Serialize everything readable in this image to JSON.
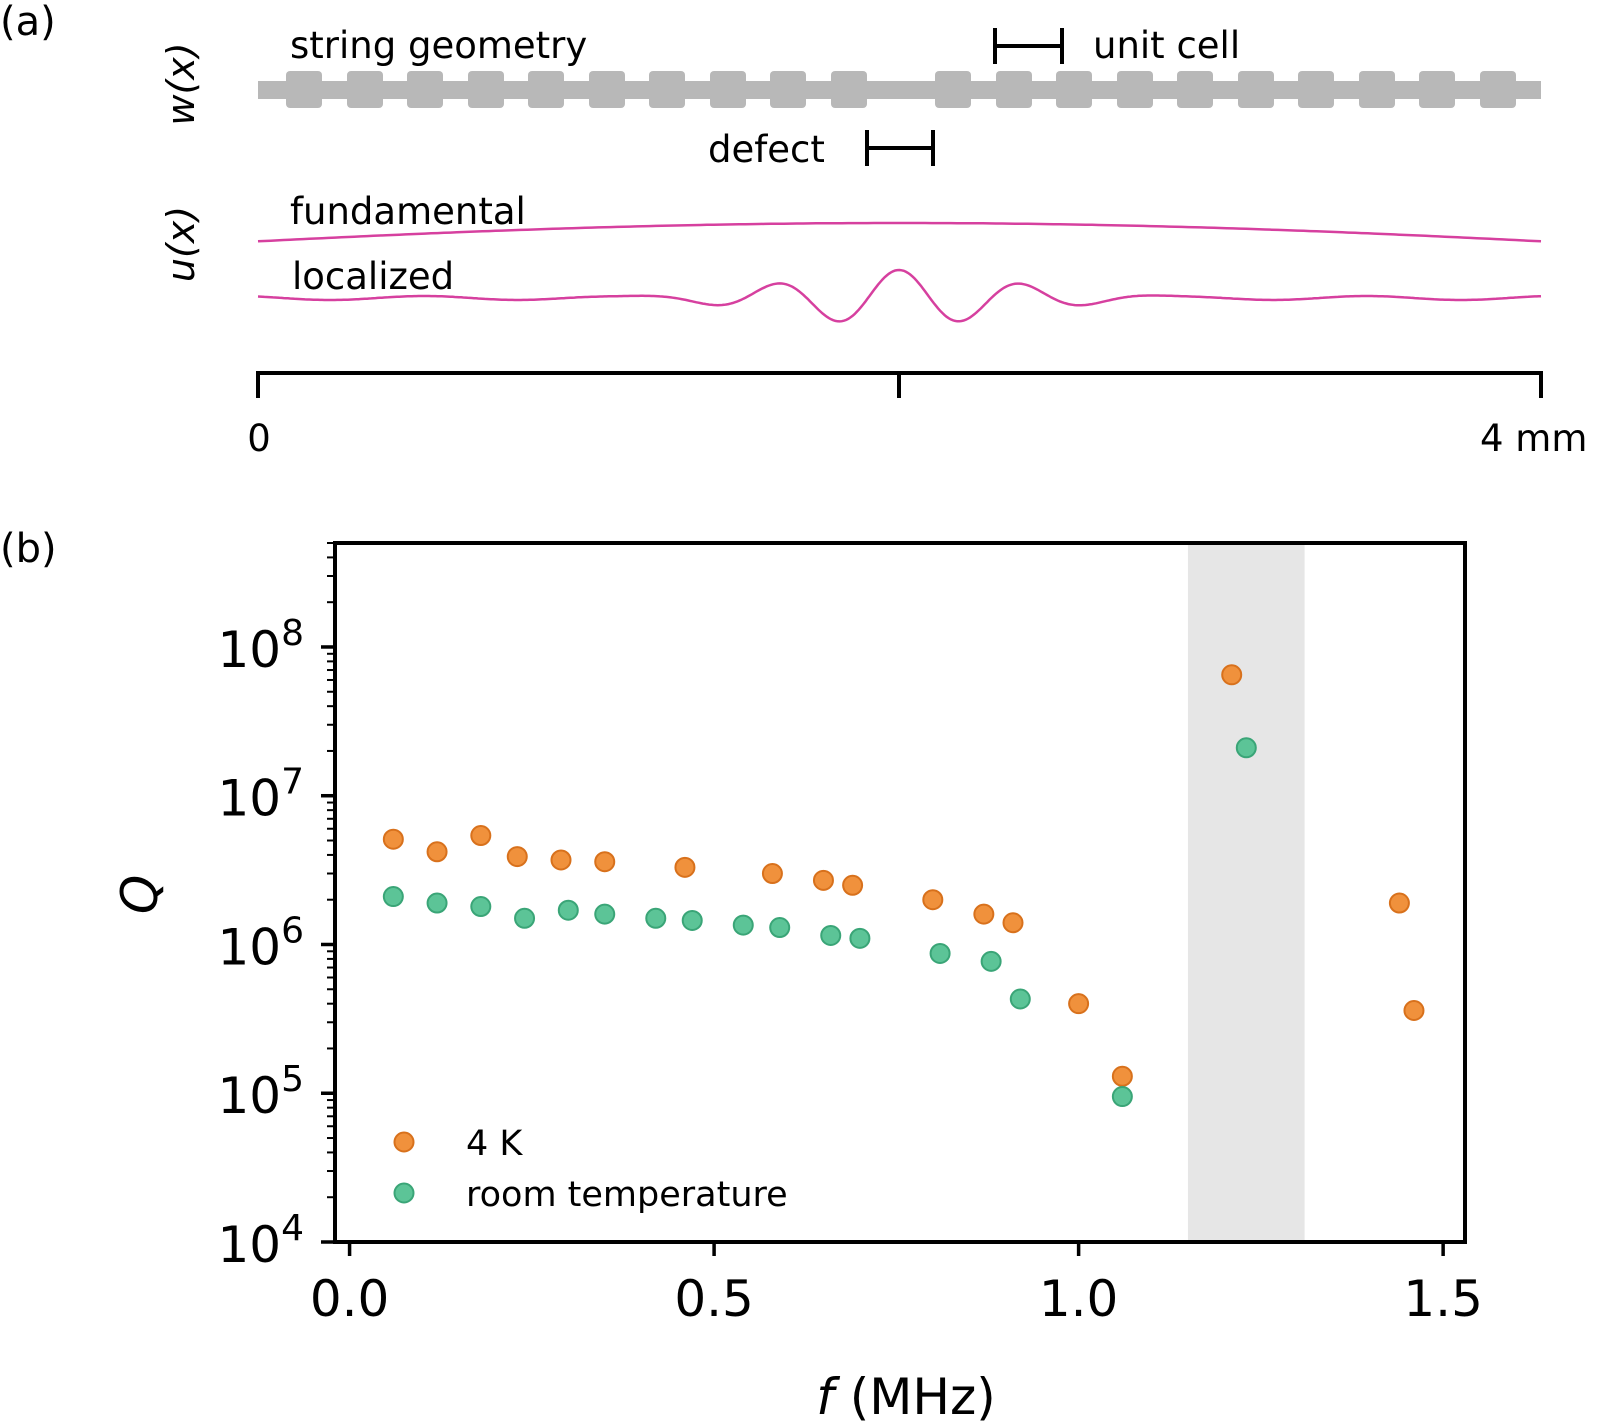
{
  "panel_a": {
    "label": "(a)",
    "w_label": "w(x)",
    "u_label": "u(x)",
    "geometry_label": "string geometry",
    "unit_cell_label": "unit cell",
    "defect_label": "defect",
    "fundamental_label": "fundamental",
    "localized_label": "localized",
    "axis_start_label": "0",
    "axis_end_label": "4 mm",
    "colors": {
      "string": "#b8b8b8",
      "mode": "#d6409f",
      "bar": "#000000"
    }
  },
  "panel_b": {
    "label": "(b)"
  },
  "chart_data": {
    "type": "scatter",
    "xlabel_italic": "f",
    "xlabel_rest": " (MHz)",
    "ylabel": "Q",
    "xlim": [
      -0.02,
      1.53
    ],
    "ylim": [
      10000,
      500000000
    ],
    "yscale": "log",
    "xticks": [
      0.0,
      0.5,
      1.0,
      1.5
    ],
    "xtick_labels": [
      "0.0",
      "0.5",
      "1.0",
      "1.5"
    ],
    "yticks": [
      10000,
      100000,
      1000000,
      10000000,
      100000000
    ],
    "ytick_bases": [
      "10",
      "10",
      "10",
      "10",
      "10"
    ],
    "ytick_exponents": [
      "4",
      "5",
      "6",
      "7",
      "8"
    ],
    "shaded_band": {
      "x": [
        1.15,
        1.31
      ],
      "color": "#e6e6e6"
    },
    "legend_position": "lower-left",
    "series": [
      {
        "name": "4 K",
        "color": "#f0913c",
        "edge": "#d8711c",
        "x": [
          0.06,
          0.12,
          0.18,
          0.23,
          0.29,
          0.35,
          0.46,
          0.58,
          0.65,
          0.69,
          0.8,
          0.87,
          0.91,
          1.0,
          1.06,
          1.21,
          1.44,
          1.46
        ],
        "y": [
          5100000,
          4200000,
          5400000,
          3900000,
          3700000,
          3600000,
          3300000,
          3000000,
          2700000,
          2500000,
          2000000,
          1600000,
          1400000,
          400000,
          130000,
          65000000,
          1900000,
          360000
        ]
      },
      {
        "name": "room temperature",
        "color": "#5cc497",
        "edge": "#3aa577",
        "x": [
          0.06,
          0.12,
          0.18,
          0.24,
          0.3,
          0.35,
          0.42,
          0.47,
          0.54,
          0.59,
          0.66,
          0.7,
          0.81,
          0.88,
          0.92,
          1.06,
          1.23
        ],
        "y": [
          2100000,
          1900000,
          1800000,
          1500000,
          1700000,
          1600000,
          1500000,
          1450000,
          1350000,
          1300000,
          1150000,
          1100000,
          870000,
          770000,
          430000,
          95000,
          21000000
        ]
      }
    ]
  }
}
